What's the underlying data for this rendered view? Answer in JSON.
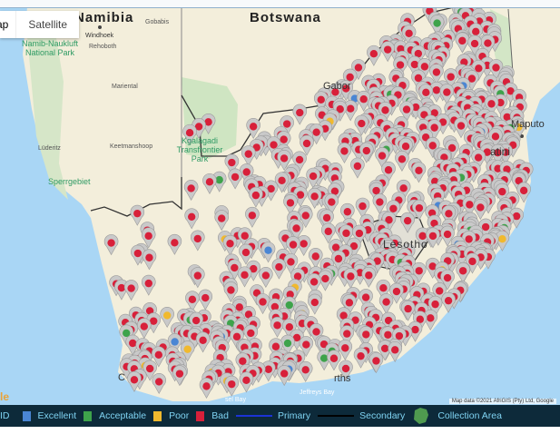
{
  "map_type_control": {
    "map_label": "Map",
    "satellite_label": "Satellite"
  },
  "labels": {
    "namibia": "Namibia",
    "botswana": "Botswana",
    "windhoek": "Windhoek",
    "gobabis": "Gobabis",
    "namib_park": "Namib-Naukluft National Park",
    "rehoboth": "Rehoboth",
    "mariental": "Mariental",
    "keetmanshoop": "Keetmanshoop",
    "luderitz": "Lüderitz",
    "sperrgebiet": "Sperrgebiet",
    "kgalagadi": "Kgalagadi Transfrontier Park",
    "gaborone": "Gabor",
    "maputo": "Maputo",
    "eswatini": "atini",
    "lesotho": "Lesotho",
    "cape": "C",
    "port_elizabeth": "rths",
    "mossel_bay": "sel Bay",
    "jeffreys_bay": "Jeffreys Bay"
  },
  "google_logo": "le",
  "attribution": "Map data ©2021 AfriGIS (Pty) Ltd, Google",
  "marker_colors": {
    "excellent": "#4a86d4",
    "acceptable": "#3ea34b",
    "poor": "#f1b92e",
    "bad": "#d8203a"
  },
  "legend": {
    "items": [
      {
        "label": "ID",
        "type": "text"
      },
      {
        "label": "Excellent",
        "type": "swatch",
        "color": "#4a86d4"
      },
      {
        "label": "Acceptable",
        "type": "swatch",
        "color": "#3ea34b"
      },
      {
        "label": "Poor",
        "type": "swatch",
        "color": "#f1b92e"
      },
      {
        "label": "Bad",
        "type": "swatch",
        "color": "#d8203a"
      },
      {
        "label": "Primary",
        "type": "line",
        "color": "#1b33d6"
      },
      {
        "label": "Secondary",
        "type": "line",
        "color": "#000000"
      },
      {
        "label": "Collection Area",
        "type": "area",
        "color": "#4f9a4f"
      }
    ]
  }
}
